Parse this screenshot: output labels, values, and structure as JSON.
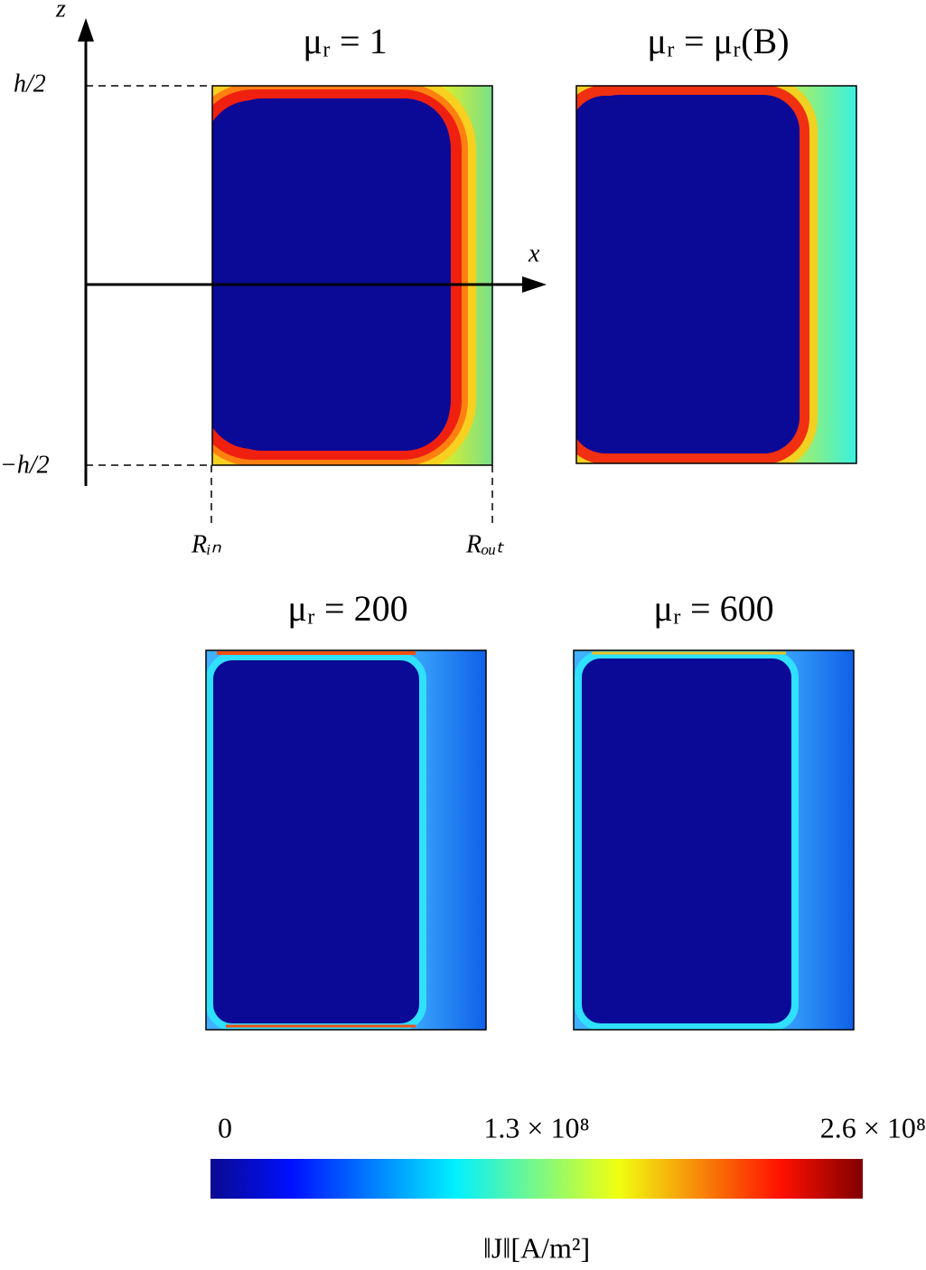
{
  "panels": [
    {
      "title": "μᵣ = 1"
    },
    {
      "title": "μᵣ = μᵣ(B)"
    },
    {
      "title": "μᵣ = 200"
    },
    {
      "title": "μᵣ = 600"
    }
  ],
  "axes": {
    "z_label": "z",
    "x_label": "x",
    "top_label": "h/2",
    "bottom_label": "−h/2",
    "inner_label": "Rᵢₙ",
    "outer_label": "Rₒᵤₜ"
  },
  "colorbar": {
    "lim": [
      0,
      260000000
    ],
    "ticks": [
      0,
      {
        "value": 130000000,
        "label": "1.3 × 10⁸"
      },
      {
        "value": 260000000,
        "label": "2.6 × 10⁸"
      }
    ],
    "label": "‖J‖[A/m²]",
    "colormap": "jet"
  }
}
